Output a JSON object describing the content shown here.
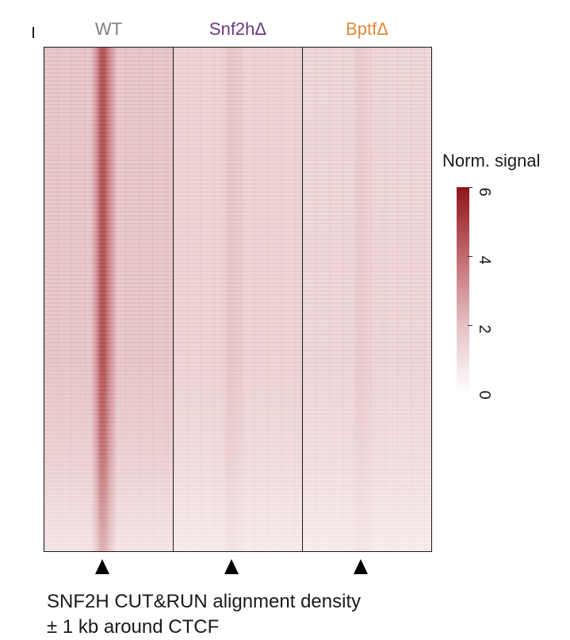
{
  "chart_data": {
    "type": "heatmap",
    "panels": [
      {
        "name": "WT",
        "color": "#7f7f7f",
        "base_level": 1.9,
        "center_level": 4.6
      },
      {
        "name": "Snf2hΔ",
        "color": "#6b3a86",
        "base_level": 1.45,
        "center_level": 1.9
      },
      {
        "name": "BptfΔ",
        "color": "#e08a3c",
        "base_level": 1.35,
        "center_level": 1.7
      }
    ],
    "x_window": "± 1 kb around CTCF",
    "colorbar": {
      "title": "Norm. signal",
      "ticks": [
        6,
        4,
        2,
        0
      ],
      "range": [
        0,
        6
      ],
      "colors": [
        "#ffffff",
        "#e6c2c5",
        "#c26b71",
        "#8e1518"
      ]
    },
    "caption_line1": "SNF2H CUT&RUN alignment density",
    "caption_line2": "± 1 kb around CTCF"
  }
}
